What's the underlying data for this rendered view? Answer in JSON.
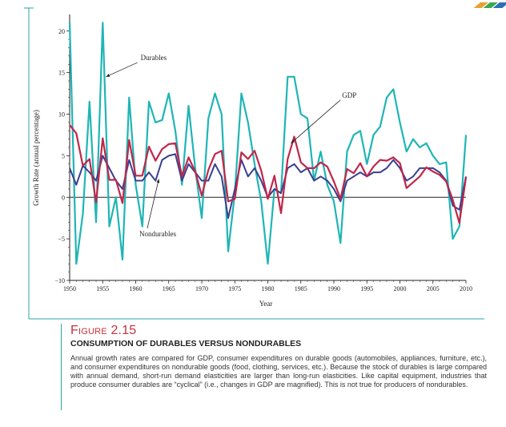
{
  "figure": {
    "title": "Figure 2.15",
    "subtitle": "CONSUMPTION OF DURABLES VERSUS NONDURABLES",
    "description": "Annual growth rates are compared for GDP, consumer expenditures on durable goods (automobiles, appliances, furniture, etc.), and consumer expenditures on nondurable goods (food, clothing, services, etc.). Because the stock of durables is large compared with annual demand, short-run demand elasticities are larger than long-run elasticities. Like capital equipment, industries that produce consumer durables are “cyclical” (i.e., changes in GDP are magnified). This is not true for producers of nondurables."
  },
  "colors": {
    "durables": "#1fb5b5",
    "gdp": "#c0264a",
    "nondurables": "#3a3f8f",
    "rule": "#2aa7a7"
  },
  "chart_data": {
    "type": "line",
    "xlabel": "Year",
    "ylabel": "Growth Rate (annual percentage)",
    "xlim": [
      1950,
      2010
    ],
    "ylim": [
      -10,
      22
    ],
    "xticks": [
      1950,
      1955,
      1960,
      1965,
      1970,
      1975,
      1980,
      1985,
      1990,
      1995,
      2000,
      2005,
      2010
    ],
    "yticks": [
      -10,
      -5,
      0,
      5,
      10,
      15,
      20
    ],
    "x": [
      1950,
      1951,
      1952,
      1953,
      1954,
      1955,
      1956,
      1957,
      1958,
      1959,
      1960,
      1961,
      1962,
      1963,
      1964,
      1965,
      1966,
      1967,
      1968,
      1969,
      1970,
      1971,
      1972,
      1973,
      1974,
      1975,
      1976,
      1977,
      1978,
      1979,
      1980,
      1981,
      1982,
      1983,
      1984,
      1985,
      1986,
      1987,
      1988,
      1989,
      1990,
      1991,
      1992,
      1993,
      1994,
      1995,
      1996,
      1997,
      1998,
      1999,
      2000,
      2001,
      2002,
      2003,
      2004,
      2005,
      2006,
      2007,
      2008,
      2009,
      2010
    ],
    "series": [
      {
        "name": "Durables",
        "values": [
          21,
          -8,
          -2,
          11.5,
          -3,
          21,
          -3.5,
          0,
          -7.5,
          12,
          1.5,
          -3.5,
          11.5,
          9,
          9.3,
          12.5,
          8,
          1.5,
          11,
          3.5,
          -2.5,
          9.5,
          12.5,
          10,
          -6.5,
          0.5,
          12.5,
          9,
          4,
          -0.5,
          -8,
          1,
          0.5,
          14.5,
          14.5,
          10,
          9.5,
          2,
          5.5,
          1.5,
          -0.5,
          -5.5,
          5.5,
          7.5,
          8,
          4,
          7.5,
          8.5,
          12,
          13,
          9,
          5.5,
          7,
          6,
          6.5,
          5,
          4,
          4.2,
          -5,
          -3.5,
          7.5
        ]
      },
      {
        "name": "GDP",
        "values": [
          8.7,
          7.7,
          3.8,
          4.6,
          -0.6,
          7.1,
          2.1,
          2.1,
          -0.7,
          6.9,
          2.6,
          2.6,
          6.1,
          4.4,
          5.8,
          6.4,
          6.5,
          2.5,
          4.8,
          3.1,
          0.2,
          3.3,
          5.2,
          5.6,
          -0.5,
          -0.2,
          5.4,
          4.6,
          5.6,
          3.2,
          -0.2,
          2.6,
          -1.9,
          4.6,
          7.3,
          4.2,
          3.5,
          3.5,
          4.2,
          3.7,
          1.9,
          -0.2,
          3.4,
          2.9,
          4.1,
          2.5,
          3.7,
          4.5,
          4.4,
          4.8,
          4.1,
          1.1,
          1.8,
          2.5,
          3.6,
          3.1,
          2.7,
          1.9,
          -0.3,
          -3.1,
          2.4
        ]
      },
      {
        "name": "Nondurables",
        "values": [
          3.5,
          1.5,
          3.8,
          3,
          2,
          5,
          3.5,
          2,
          1,
          4.5,
          2,
          2,
          3,
          2,
          4.5,
          5,
          5.2,
          2,
          4,
          3,
          2,
          2,
          4,
          2.5,
          -2.5,
          1,
          4.5,
          2.5,
          3.5,
          2,
          0,
          1,
          0.5,
          3.5,
          4,
          3,
          3.5,
          2,
          2.5,
          2,
          1,
          -0.5,
          2,
          2.5,
          3,
          2.5,
          3,
          3,
          3.5,
          4.5,
          3.5,
          2,
          2.5,
          3.5,
          3.5,
          3.5,
          3,
          2,
          -1,
          -1.5,
          2.5
        ]
      }
    ],
    "annotations": [
      {
        "text": "Durables",
        "series": "Durables",
        "point_year": 1955.5,
        "point_value": 14.5,
        "text_year": 1960.5,
        "text_value": 16.5
      },
      {
        "text": "GDP",
        "series": "GDP",
        "point_year": 1983.5,
        "point_value": 6.5,
        "text_year": 1991,
        "text_value": 12
      },
      {
        "text": "Nondurables",
        "series": "Nondurables",
        "point_year": 1963.5,
        "point_value": 2.2,
        "text_year": 1962,
        "text_value": -4.5
      }
    ],
    "grid": false,
    "zero_line": true,
    "legend": "none"
  }
}
